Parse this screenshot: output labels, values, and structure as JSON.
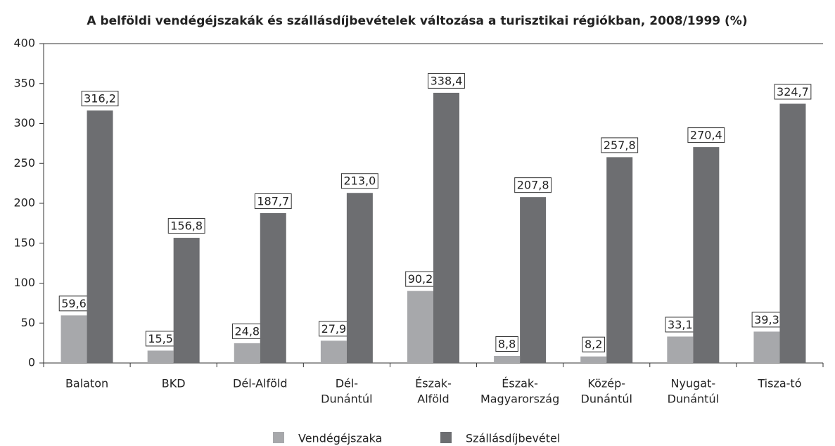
{
  "chart_data": {
    "type": "bar",
    "title": "A belföldi vendégéjszakák és szállásdíjbevételek változása a turisztikai régiókban, 2008/1999 (%)",
    "categories": [
      [
        "Balaton"
      ],
      [
        "BKD"
      ],
      [
        "Dél-Alföld"
      ],
      [
        "Dél-",
        "Dunántúl"
      ],
      [
        "Észak-",
        "Alföld"
      ],
      [
        "Észak-",
        "Magyarország"
      ],
      [
        "Közép-",
        "Dunántúl"
      ],
      [
        "Nyugat-",
        "Dunántúl"
      ],
      [
        "Tisza-tó"
      ]
    ],
    "series": [
      {
        "name": "Vendégéjszaka",
        "color": "#a7a8ab",
        "values": [
          59.6,
          15.5,
          24.8,
          27.9,
          90.2,
          8.8,
          8.2,
          33.1,
          39.3
        ],
        "value_labels": [
          "59,6",
          "15,5",
          "24,8",
          "27,9",
          "90,2",
          "8,8",
          "8,2",
          "33,1",
          "39,3"
        ]
      },
      {
        "name": "Szállásdíjbevétel",
        "color": "#6d6e71",
        "values": [
          316.2,
          156.8,
          187.7,
          213.0,
          338.4,
          207.8,
          257.8,
          270.4,
          324.7
        ],
        "value_labels": [
          "316,2",
          "156,8",
          "187,7",
          "213,0",
          "338,4",
          "207,8",
          "257,8",
          "270,4",
          "324,7"
        ]
      }
    ],
    "ylim": [
      0,
      400
    ],
    "yticks": [
      0,
      50,
      100,
      150,
      200,
      250,
      300,
      350,
      400
    ],
    "legend": "bottom"
  }
}
